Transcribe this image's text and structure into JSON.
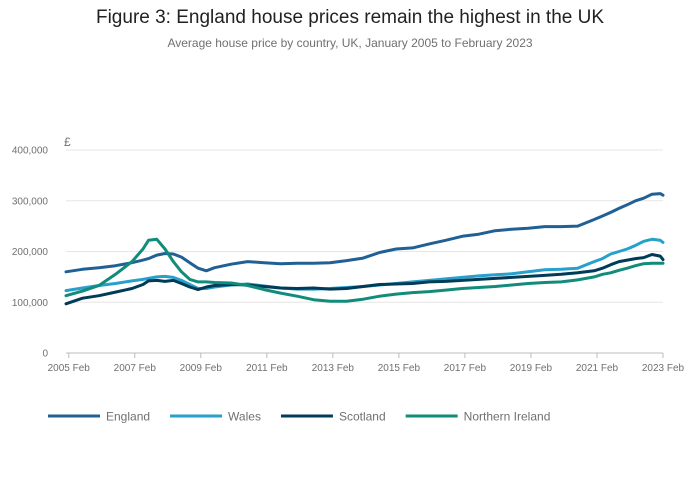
{
  "figure": {
    "title": "Figure 3: England house prices remain the highest in the UK",
    "subtitle": "Average house price by country, UK, January 2005 to February 2023"
  },
  "chart_data": {
    "type": "line",
    "title": "Figure 3: England house prices remain the highest in the UK",
    "subtitle": "Average house price by country, UK, January 2005 to February 2023",
    "xlabel": "",
    "ylabel": "£",
    "unit_label": "£",
    "xlim": [
      "2005-01",
      "2023-02"
    ],
    "ylim": [
      0,
      400000
    ],
    "x_ticks": [
      "2005 Feb",
      "2007 Feb",
      "2009 Feb",
      "2011 Feb",
      "2013 Feb",
      "2015 Feb",
      "2017 Feb",
      "2019 Feb",
      "2021 Feb",
      "2023 Feb"
    ],
    "y_ticks": [
      "0",
      "100,000",
      "200,000",
      "300,000",
      "400,000"
    ],
    "y_tick_values": [
      0,
      100000,
      200000,
      300000,
      400000
    ],
    "grid": true,
    "legend_position": "bottom",
    "x": [
      "2005-01",
      "2005-07",
      "2006-01",
      "2006-07",
      "2007-01",
      "2007-05",
      "2007-07",
      "2007-10",
      "2008-01",
      "2008-04",
      "2008-07",
      "2008-10",
      "2009-01",
      "2009-04",
      "2009-07",
      "2010-01",
      "2010-07",
      "2011-01",
      "2011-07",
      "2012-01",
      "2012-07",
      "2013-01",
      "2013-07",
      "2014-01",
      "2014-07",
      "2015-01",
      "2015-07",
      "2016-01",
      "2016-07",
      "2017-01",
      "2017-07",
      "2018-01",
      "2018-07",
      "2019-01",
      "2019-07",
      "2020-01",
      "2020-07",
      "2021-01",
      "2021-04",
      "2021-07",
      "2021-10",
      "2022-01",
      "2022-04",
      "2022-07",
      "2022-10",
      "2023-01",
      "2023-02"
    ],
    "series": [
      {
        "name": "England",
        "color": "#206095",
        "values": [
          160000,
          165000,
          168000,
          172000,
          178000,
          183000,
          186000,
          193000,
          196000,
          195000,
          189000,
          178000,
          167000,
          162000,
          168000,
          175000,
          180000,
          178000,
          176000,
          177000,
          177000,
          178000,
          182000,
          187000,
          198000,
          205000,
          207000,
          215000,
          222000,
          230000,
          234000,
          241000,
          244000,
          246000,
          249000,
          249000,
          250000,
          263000,
          270000,
          277000,
          285000,
          292000,
          300000,
          305000,
          313000,
          314000,
          311000
        ]
      },
      {
        "name": "Wales",
        "color": "#27a0cc",
        "values": [
          123000,
          128000,
          133000,
          137000,
          142000,
          145000,
          147000,
          150000,
          151000,
          149000,
          143000,
          135000,
          127000,
          127000,
          130000,
          134000,
          136000,
          132000,
          128000,
          126000,
          126000,
          127000,
          129000,
          131000,
          134000,
          137000,
          140000,
          143000,
          146000,
          149000,
          152000,
          154000,
          156000,
          160000,
          164000,
          165000,
          167000,
          180000,
          186000,
          195000,
          200000,
          205000,
          212000,
          220000,
          224000,
          222000,
          218000
        ]
      },
      {
        "name": "Scotland",
        "color": "#003c57",
        "values": [
          97000,
          108000,
          113000,
          120000,
          127000,
          135000,
          142000,
          143000,
          141000,
          143000,
          137000,
          130000,
          125000,
          130000,
          133000,
          135000,
          134000,
          131000,
          128000,
          127000,
          128000,
          126000,
          127000,
          131000,
          135000,
          136000,
          137000,
          140000,
          141000,
          143000,
          145000,
          147000,
          149000,
          151000,
          153000,
          155000,
          158000,
          162000,
          167000,
          174000,
          180000,
          183000,
          186000,
          188000,
          194000,
          191000,
          184000
        ]
      },
      {
        "name": "Northern Ireland",
        "color": "#118c7b",
        "values": [
          113000,
          122000,
          133000,
          155000,
          180000,
          205000,
          222000,
          224000,
          205000,
          180000,
          160000,
          145000,
          140000,
          140000,
          139000,
          138000,
          133000,
          125000,
          118000,
          112000,
          105000,
          102000,
          102000,
          106000,
          112000,
          116000,
          119000,
          121000,
          124000,
          127000,
          129000,
          131000,
          134000,
          137000,
          139000,
          140000,
          144000,
          150000,
          155000,
          158000,
          163000,
          167000,
          172000,
          176000,
          177000,
          177000,
          177000
        ]
      }
    ]
  }
}
